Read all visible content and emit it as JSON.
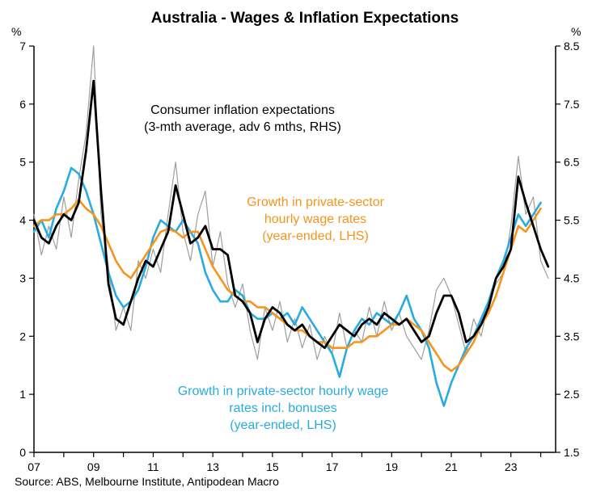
{
  "title": "Australia - Wages & Inflation Expectations",
  "source": "Source: ABS, Melbourne Institute, Antipodean Macro",
  "left_axis": {
    "unit": "%",
    "min": 0,
    "max": 7,
    "step": 1
  },
  "right_axis": {
    "unit": "%",
    "min": 1.5,
    "max": 8.5,
    "step": 1
  },
  "x_axis": {
    "min": 2007,
    "max": 2024.5,
    "tick_years": [
      2007,
      2008,
      2009,
      2010,
      2011,
      2012,
      2013,
      2014,
      2015,
      2016,
      2017,
      2018,
      2019,
      2020,
      2021,
      2022,
      2023,
      2024
    ],
    "label_years": [
      2007,
      2009,
      2011,
      2013,
      2015,
      2017,
      2019,
      2021,
      2023
    ]
  },
  "annotations": [
    {
      "id": "inflation-expectations-label",
      "text": "Consumer inflation expectations\n(3-mth average, adv 6 mths, RHS)",
      "color": "#000000"
    },
    {
      "id": "hourly-wages-label",
      "text": "Growth in private-sector\nhourly wage rates\n(year-ended, LHS)",
      "color": "#F7941D"
    },
    {
      "id": "wages-incl-bonuses-label",
      "text": "Growth in private-sector hourly wage\nrates incl. bonuses\n(year-ended, LHS)",
      "color": "#29ABE2"
    }
  ],
  "chart_data": {
    "type": "line",
    "title": "Australia - Wages & Inflation Expectations",
    "xlabel": "",
    "ylabel_left": "%",
    "ylabel_right": "%",
    "x_range": [
      2007,
      2024.5
    ],
    "ylim_left": [
      0,
      7
    ],
    "ylim_right": [
      1.5,
      8.5
    ],
    "grid": false,
    "legend_position": "inline-annotations",
    "series": [
      {
        "id": "inflation-expectations-monthly",
        "label": "",
        "axis": "right",
        "color": "#9E9E9E",
        "width": 1.2,
        "x_start": 2007.0,
        "x_step": 0.25,
        "values": [
          5.6,
          4.9,
          5.4,
          5.0,
          5.9,
          5.2,
          6.2,
          7.0,
          8.5,
          5.6,
          4.7,
          3.6,
          4.0,
          3.6,
          4.8,
          4.5,
          5.0,
          4.6,
          5.6,
          6.5,
          5.3,
          4.8,
          5.6,
          6.0,
          4.7,
          5.3,
          4.4,
          4.0,
          4.4,
          3.6,
          3.1,
          4.0,
          3.6,
          4.1,
          3.4,
          3.8,
          3.3,
          3.7,
          3.1,
          3.5,
          3.2,
          3.9,
          3.3,
          3.6,
          3.4,
          4.0,
          3.5,
          4.1,
          3.6,
          3.9,
          3.5,
          3.3,
          3.1,
          3.6,
          4.3,
          4.5,
          4.2,
          3.7,
          3.2,
          3.8,
          3.5,
          4.1,
          4.4,
          4.6,
          5.4,
          6.6,
          5.6,
          5.9,
          4.8,
          4.5
        ]
      },
      {
        "id": "wages-incl-bonuses",
        "label": "Growth in private-sector hourly wage rates incl. bonuses (year-ended, LHS)",
        "axis": "left",
        "color": "#29ABE2",
        "width": 2.6,
        "x_start": 2007.0,
        "x_step": 0.25,
        "values": [
          3.8,
          4.0,
          3.7,
          4.2,
          4.5,
          4.9,
          4.8,
          4.5,
          4.1,
          3.6,
          3.1,
          2.7,
          2.5,
          2.6,
          2.8,
          3.2,
          3.7,
          4.0,
          3.9,
          3.8,
          4.0,
          3.8,
          3.6,
          3.1,
          2.8,
          2.6,
          2.6,
          2.8,
          2.7,
          2.4,
          2.3,
          2.3,
          2.4,
          2.3,
          2.4,
          2.2,
          2.5,
          2.3,
          2.1,
          1.9,
          1.7,
          1.3,
          1.8,
          2.1,
          2.3,
          2.2,
          2.4,
          2.3,
          2.2,
          2.4,
          2.7,
          2.3,
          2.1,
          1.8,
          1.2,
          0.8,
          1.2,
          1.5,
          1.8,
          2.0,
          2.3,
          2.6,
          3.0,
          3.3,
          3.7,
          4.1,
          3.9,
          4.1,
          4.3
        ]
      },
      {
        "id": "wages-hourly",
        "label": "Growth in private-sector hourly wage rates (year-ended, LHS)",
        "axis": "left",
        "color": "#F7941D",
        "width": 2.6,
        "x_start": 2007.0,
        "x_step": 0.25,
        "values": [
          3.9,
          4.0,
          4.0,
          4.1,
          4.1,
          4.2,
          4.35,
          4.2,
          4.1,
          3.9,
          3.6,
          3.3,
          3.1,
          3.0,
          3.2,
          3.4,
          3.6,
          3.8,
          3.85,
          3.8,
          3.7,
          3.8,
          3.8,
          3.5,
          3.2,
          3.0,
          2.8,
          2.7,
          2.6,
          2.6,
          2.5,
          2.5,
          2.4,
          2.3,
          2.2,
          2.1,
          2.1,
          2.0,
          1.9,
          1.9,
          1.8,
          1.8,
          1.8,
          1.9,
          1.9,
          2.0,
          2.0,
          2.1,
          2.2,
          2.2,
          2.3,
          2.2,
          2.1,
          1.9,
          1.7,
          1.5,
          1.4,
          1.5,
          1.7,
          1.9,
          2.2,
          2.4,
          2.7,
          3.1,
          3.5,
          3.9,
          3.8,
          4.0,
          4.2
        ]
      },
      {
        "id": "inflation-expectations-3mth",
        "label": "Consumer inflation expectations (3-mth average, adv 6 mths, RHS)",
        "axis": "right",
        "color": "#000000",
        "width": 2.8,
        "x_start": 2007.0,
        "x_step": 0.25,
        "values": [
          5.5,
          5.2,
          5.1,
          5.4,
          5.6,
          5.5,
          5.8,
          6.7,
          7.9,
          6.0,
          4.4,
          3.8,
          3.7,
          4.1,
          4.5,
          4.8,
          4.7,
          5.0,
          5.3,
          6.1,
          5.6,
          5.1,
          5.2,
          5.4,
          5.0,
          5.0,
          4.9,
          4.2,
          4.1,
          3.9,
          3.4,
          3.8,
          4.0,
          3.9,
          3.7,
          3.6,
          3.7,
          3.5,
          3.4,
          3.3,
          3.5,
          3.7,
          3.6,
          3.5,
          3.7,
          3.8,
          3.7,
          3.9,
          3.8,
          3.7,
          3.8,
          3.6,
          3.4,
          3.5,
          3.9,
          4.2,
          4.2,
          3.9,
          3.4,
          3.5,
          3.7,
          4.0,
          4.5,
          4.7,
          5.0,
          6.25,
          5.8,
          5.4,
          5.0,
          4.7
        ]
      }
    ]
  }
}
